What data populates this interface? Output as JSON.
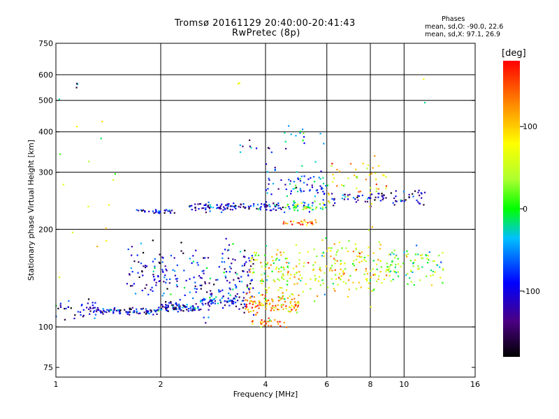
{
  "header": {
    "title": "Tromsø 20161129 20:40:00-20:41:43",
    "subtitle": "RwPretec (8p)"
  },
  "phases_box": {
    "title": "Phases",
    "line_o": "mean, sd,O: -90.0, 22.6",
    "line_x": "mean, sd,X:  97.1, 26.9"
  },
  "colorbar": {
    "label": "[deg]",
    "ticks": [
      "100",
      "0",
      "-100"
    ],
    "tick_values": [
      100,
      0,
      -100
    ],
    "range": [
      -180,
      180
    ]
  },
  "chart_data": {
    "type": "scatter",
    "title": "Tromsø 20161129 20:40:00-20:41:43",
    "subtitle": "RwPretec (8p)",
    "xlabel": "Frequency [MHz]",
    "ylabel": "Stationary phase Virtual Height [km]",
    "x_scale": "log",
    "y_scale": "log",
    "xlim": [
      1,
      16
    ],
    "ylim": [
      70,
      750
    ],
    "x_ticks": [
      1,
      2,
      4,
      6,
      8,
      10,
      16
    ],
    "y_ticks": [
      75,
      100,
      200,
      300,
      400,
      500,
      600,
      750
    ],
    "x_grid": [
      2,
      4,
      6,
      8,
      10
    ],
    "y_grid": [
      100,
      200,
      300,
      400,
      500,
      600
    ],
    "color_by": "phase [deg]",
    "clusters": [
      {
        "x_range": [
          1.0,
          1.3
        ],
        "height": 113,
        "spread": 0.035,
        "phase": -110,
        "count": 40
      },
      {
        "x_range": [
          1.3,
          2.0
        ],
        "height": 112,
        "spread": 0.012,
        "phase": -105,
        "count": 90
      },
      {
        "x_range": [
          2.0,
          2.6
        ],
        "height": 115,
        "spread": 0.015,
        "phase": -110,
        "count": 80
      },
      {
        "x_range": [
          2.6,
          3.5
        ],
        "height": 120,
        "spread": 0.02,
        "phase": -95,
        "count": 60
      },
      {
        "x_range": [
          1.6,
          2.1
        ],
        "height": 145,
        "spread": 0.09,
        "phase": -110,
        "count": 70
      },
      {
        "x_range": [
          2.1,
          3.1
        ],
        "height": 140,
        "spread": 0.12,
        "phase": -100,
        "count": 90
      },
      {
        "x_range": [
          3.0,
          3.7
        ],
        "height": 145,
        "spread": 0.12,
        "phase": -95,
        "count": 80
      },
      {
        "x_range": [
          3.5,
          5.0
        ],
        "height": 118,
        "spread": 0.04,
        "phase": 120,
        "count": 110
      },
      {
        "x_range": [
          3.6,
          4.6
        ],
        "height": 103,
        "spread": 0.015,
        "phase": 110,
        "count": 25
      },
      {
        "x_range": [
          3.6,
          6.0
        ],
        "height": 150,
        "spread": 0.1,
        "phase": 60,
        "count": 150
      },
      {
        "x_range": [
          6.0,
          9.0
        ],
        "height": 150,
        "spread": 0.1,
        "phase": 70,
        "count": 130
      },
      {
        "x_range": [
          9.0,
          13.0
        ],
        "height": 155,
        "spread": 0.07,
        "phase": 20,
        "count": 90
      },
      {
        "x_range": [
          1.7,
          2.2
        ],
        "height": 228,
        "spread": 0.008,
        "phase": -115,
        "count": 30
      },
      {
        "x_range": [
          2.4,
          4.5
        ],
        "height": 235,
        "spread": 0.015,
        "phase": -105,
        "count": 120
      },
      {
        "x_range": [
          4.5,
          6.0
        ],
        "height": 235,
        "spread": 0.015,
        "phase": 10,
        "count": 50
      },
      {
        "x_range": [
          4.5,
          5.6
        ],
        "height": 210,
        "spread": 0.012,
        "phase": 140,
        "count": 25
      },
      {
        "x_range": [
          4.0,
          6.0
        ],
        "height": 275,
        "spread": 0.08,
        "phase": -70,
        "count": 80
      },
      {
        "x_range": [
          6.2,
          11.5
        ],
        "height": 250,
        "spread": 0.025,
        "phase": -110,
        "count": 80
      },
      {
        "x_range": [
          6.0,
          9.0
        ],
        "height": 280,
        "spread": 0.08,
        "phase": 90,
        "count": 50
      },
      {
        "x_range": [
          3.3,
          4.2
        ],
        "height": 355,
        "spread": 0.02,
        "phase": -100,
        "count": 10
      },
      {
        "x_range": [
          4.5,
          6.0
        ],
        "height": 390,
        "spread": 0.05,
        "phase": -40,
        "count": 15
      },
      {
        "x_range": [
          1.0,
          1.5
        ],
        "height": 250,
        "spread": 0.35,
        "phase": 60,
        "count": 16
      },
      {
        "x_range": [
          1.1,
          1.2
        ],
        "height": 550,
        "spread": 0.02,
        "phase": -110,
        "count": 3
      },
      {
        "x_range": [
          3.3,
          3.4
        ],
        "height": 565,
        "spread": 0.02,
        "phase": 110,
        "count": 2
      },
      {
        "x_range": [
          11.0,
          12.5
        ],
        "height": 520,
        "spread": 0.05,
        "phase": 40,
        "count": 2
      }
    ]
  }
}
